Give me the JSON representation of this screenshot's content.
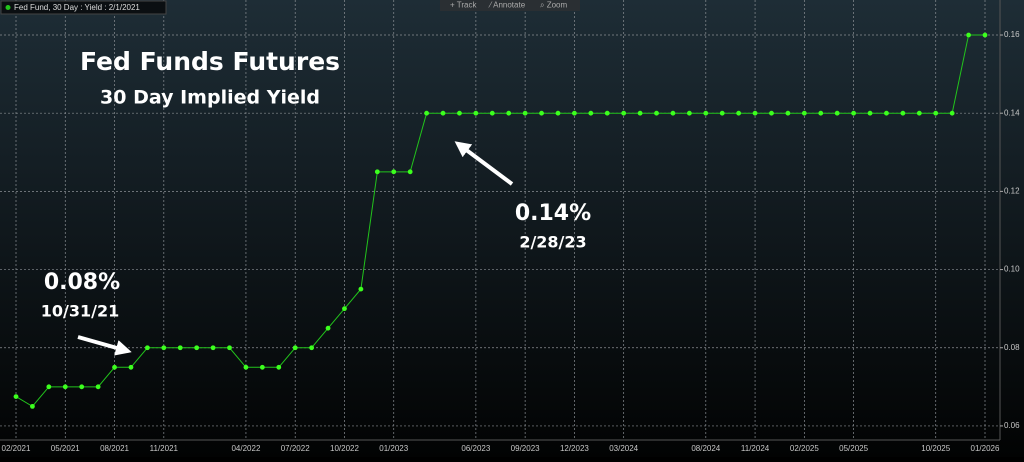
{
  "toolbar": [
    "Track",
    "Annotate",
    "Zoom"
  ],
  "chart_data": {
    "type": "line",
    "title": "Fed Funds Futures",
    "subtitle": "30 Day Implied Yield",
    "categories": [
      "02/2021",
      null,
      null,
      "05/2021",
      null,
      null,
      "08/2021",
      null,
      null,
      "11/2021",
      null,
      null,
      null,
      null,
      "04/2022",
      null,
      null,
      "07/2022",
      null,
      null,
      "10/2022",
      null,
      null,
      "01/2023",
      null,
      null,
      null,
      null,
      "06/2023",
      null,
      null,
      "09/2023",
      null,
      null,
      "12/2023",
      null,
      null,
      "03/2024",
      null,
      null,
      null,
      null,
      "08/2024",
      null,
      null,
      "11/2024",
      null,
      null,
      "02/2025",
      null,
      null,
      "05/2025",
      null,
      null,
      null,
      null,
      "10/2025",
      null,
      null,
      "01/2026"
    ],
    "series": [
      {
        "name": "Fed Fund, 30 Day : Yield : 2/1/2021",
        "color": "#22c41c",
        "values": [
          0.0675,
          0.065,
          0.07,
          0.07,
          0.07,
          0.07,
          0.075,
          0.075,
          0.08,
          0.08,
          0.08,
          0.08,
          0.08,
          0.08,
          0.075,
          0.075,
          0.075,
          0.08,
          0.08,
          0.085,
          0.09,
          0.095,
          0.125,
          0.125,
          0.125,
          0.14,
          0.14,
          0.14,
          0.14,
          0.14,
          0.14,
          0.14,
          0.14,
          0.14,
          0.14,
          0.14,
          0.14,
          0.14,
          0.14,
          0.14,
          0.14,
          0.14,
          0.14,
          0.14,
          0.14,
          0.14,
          0.14,
          0.14,
          0.14,
          0.14,
          0.14,
          0.14,
          0.14,
          0.14,
          0.14,
          0.14,
          0.14,
          0.14,
          0.16,
          0.16
        ]
      }
    ],
    "ylim": [
      0.0564,
      0.1664
    ],
    "yticks": [
      0.06,
      0.08,
      {
        "value": 0.1,
        "label": "0.10"
      },
      0.12,
      0.14,
      0.16
    ],
    "grid": true,
    "annotations": [
      {
        "text": "0.08%"
      },
      {
        "text": "10/31/21"
      },
      {
        "text": "0.14%"
      },
      {
        "text": "2/28/23"
      }
    ]
  }
}
